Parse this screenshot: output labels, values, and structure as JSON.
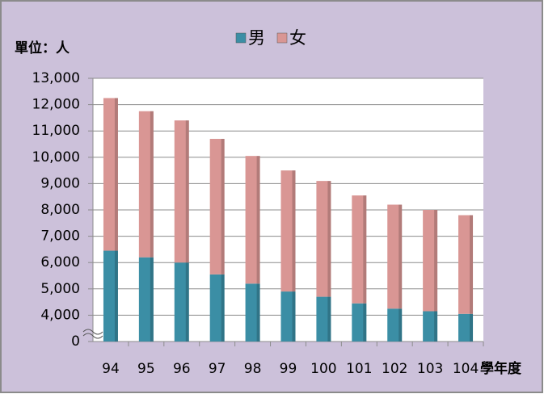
{
  "chart_data": {
    "type": "bar",
    "stacked": true,
    "y_axis_label": "單位：人",
    "x_axis_label": "學年度",
    "categories": [
      "94",
      "95",
      "96",
      "97",
      "98",
      "99",
      "100",
      "101",
      "102",
      "103",
      "104"
    ],
    "series": [
      {
        "name": "男",
        "color": "#3b8ea5",
        "values": [
          6450,
          6200,
          6000,
          5550,
          5200,
          4900,
          4700,
          4450,
          4250,
          4150,
          4050
        ]
      },
      {
        "name": "女",
        "color": "#d99694",
        "values": [
          5800,
          5550,
          5400,
          5150,
          4850,
          4600,
          4400,
          4100,
          3950,
          3850,
          3750
        ]
      }
    ],
    "ylim": [
      0,
      13000
    ],
    "yticks": [
      0,
      {
        "value": 4000,
        "label": "4,000"
      },
      {
        "value": 5000,
        "label": "5,000"
      },
      {
        "value": 6000,
        "label": "6,000"
      },
      {
        "value": 7000,
        "label": "7,000"
      },
      {
        "value": 8000,
        "label": "8,000"
      },
      {
        "value": 9000,
        "label": "9,000"
      },
      {
        "value": 10000,
        "label": "10,000"
      },
      {
        "value": 11000,
        "label": "11,000"
      },
      {
        "value": 12000,
        "label": "12,000"
      },
      {
        "value": 13000,
        "label": "13,000"
      }
    ],
    "grid": true,
    "legend": "top"
  }
}
